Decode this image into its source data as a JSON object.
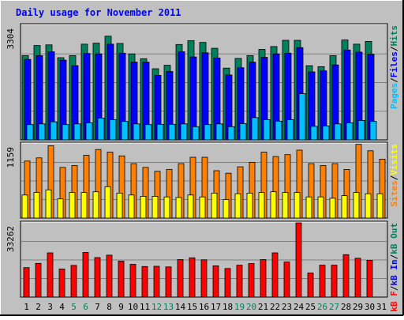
{
  "colors": {
    "background": "#C0C0C0",
    "title": "#0000FF",
    "hits": "#00805C",
    "files": "#0000FF",
    "pages": "#00C0FF",
    "visits": "#FFFF00",
    "sites": "#FF8000",
    "kbytes": "#FF0000",
    "weekend_label": "#00805C",
    "weekday_label": "#000000"
  },
  "chart_data": [
    {
      "type": "bar",
      "title": "Daily usage for November 2011",
      "panel": "hits-files-pages",
      "ymax_label": "3304",
      "ylim": [
        0,
        3304
      ],
      "legend": [
        {
          "text": "Pages",
          "color": "#00C0FF"
        },
        {
          "text": "/",
          "color": "#000000"
        },
        {
          "text": "Files",
          "color": "#0000FF"
        },
        {
          "text": "/",
          "color": "#000000"
        },
        {
          "text": "Hits",
          "color": "#00805C"
        }
      ],
      "categories": [
        "1",
        "2",
        "3",
        "4",
        "5",
        "6",
        "7",
        "8",
        "9",
        "10",
        "11",
        "12",
        "13",
        "14",
        "15",
        "16",
        "17",
        "18",
        "19",
        "20",
        "21",
        "22",
        "23",
        "24",
        "25",
        "26",
        "27",
        "28",
        "29",
        "30",
        "31"
      ],
      "series": [
        {
          "name": "Hits",
          "values": [
            2430,
            2720,
            2740,
            2370,
            2430,
            2760,
            2790,
            2990,
            2780,
            2480,
            2340,
            2050,
            2150,
            2750,
            2860,
            2810,
            2640,
            2070,
            2350,
            2430,
            2610,
            2690,
            2870,
            2870,
            2140,
            2110,
            2430,
            2880,
            2760,
            2840,
            0
          ]
        },
        {
          "name": "Files",
          "values": [
            2320,
            2430,
            2540,
            2300,
            2140,
            2490,
            2480,
            2760,
            2500,
            2240,
            2240,
            1860,
            1970,
            2540,
            2390,
            2510,
            2360,
            1870,
            2080,
            2240,
            2380,
            2480,
            2500,
            2660,
            1960,
            1990,
            2160,
            2590,
            2530,
            2470,
            0
          ]
        },
        {
          "name": "Pages",
          "values": [
            440,
            460,
            520,
            440,
            460,
            490,
            630,
            580,
            530,
            460,
            440,
            450,
            450,
            460,
            380,
            440,
            460,
            380,
            470,
            640,
            580,
            540,
            580,
            1330,
            390,
            400,
            460,
            490,
            560,
            530,
            0
          ]
        }
      ]
    },
    {
      "type": "bar",
      "panel": "visits-sites",
      "ymax_label": "1159",
      "ylim": [
        0,
        1159
      ],
      "legend": [
        {
          "text": "Sites",
          "color": "#FF8000"
        },
        {
          "text": "/",
          "color": "#000000"
        },
        {
          "text": "Visits",
          "color": "#FFFF00"
        }
      ],
      "categories": [
        "1",
        "2",
        "3",
        "4",
        "5",
        "6",
        "7",
        "8",
        "9",
        "10",
        "11",
        "12",
        "13",
        "14",
        "15",
        "16",
        "17",
        "18",
        "19",
        "20",
        "21",
        "22",
        "23",
        "24",
        "25",
        "26",
        "27",
        "28",
        "29",
        "30",
        "31"
      ],
      "series": [
        {
          "name": "Sites",
          "values": [
            890,
            940,
            1130,
            790,
            820,
            980,
            1070,
            1030,
            970,
            850,
            790,
            730,
            760,
            850,
            950,
            950,
            740,
            700,
            800,
            870,
            1030,
            960,
            990,
            1060,
            850,
            820,
            850,
            760,
            1150,
            1050,
            920
          ]
        },
        {
          "name": "Visits",
          "values": [
            360,
            400,
            440,
            300,
            400,
            400,
            410,
            490,
            390,
            360,
            340,
            340,
            330,
            320,
            360,
            330,
            390,
            290,
            380,
            390,
            400,
            410,
            400,
            400,
            330,
            330,
            310,
            350,
            400,
            380,
            380
          ]
        }
      ]
    },
    {
      "type": "bar",
      "panel": "kbytes",
      "ymax_label": "33262",
      "ylim": [
        0,
        33262
      ],
      "legend": [
        {
          "text": "kB F",
          "color": "#FF0000"
        },
        {
          "text": "/",
          "color": "#000000"
        },
        {
          "text": "kB In",
          "color": "#0000FF"
        },
        {
          "text": "/",
          "color": "#000000"
        },
        {
          "text": "kB Out",
          "color": "#00805C"
        }
      ],
      "categories": [
        "1",
        "2",
        "3",
        "4",
        "5",
        "6",
        "7",
        "8",
        "9",
        "10",
        "11",
        "12",
        "13",
        "14",
        "15",
        "16",
        "17",
        "18",
        "19",
        "20",
        "21",
        "22",
        "23",
        "24",
        "25",
        "26",
        "27",
        "28",
        "29",
        "30",
        "31"
      ],
      "weekend_days": [
        5,
        6,
        12,
        13,
        19,
        20,
        26,
        27
      ],
      "series": [
        {
          "name": "kB F",
          "values": [
            13200,
            15100,
            19800,
            12600,
            14200,
            20000,
            17700,
            18800,
            16100,
            14700,
            13700,
            13800,
            13500,
            16800,
            17600,
            16700,
            14000,
            12800,
            14300,
            15000,
            16800,
            19800,
            15700,
            33262,
            10800,
            14300,
            14300,
            19000,
            17400,
            16500,
            0
          ]
        }
      ]
    }
  ]
}
